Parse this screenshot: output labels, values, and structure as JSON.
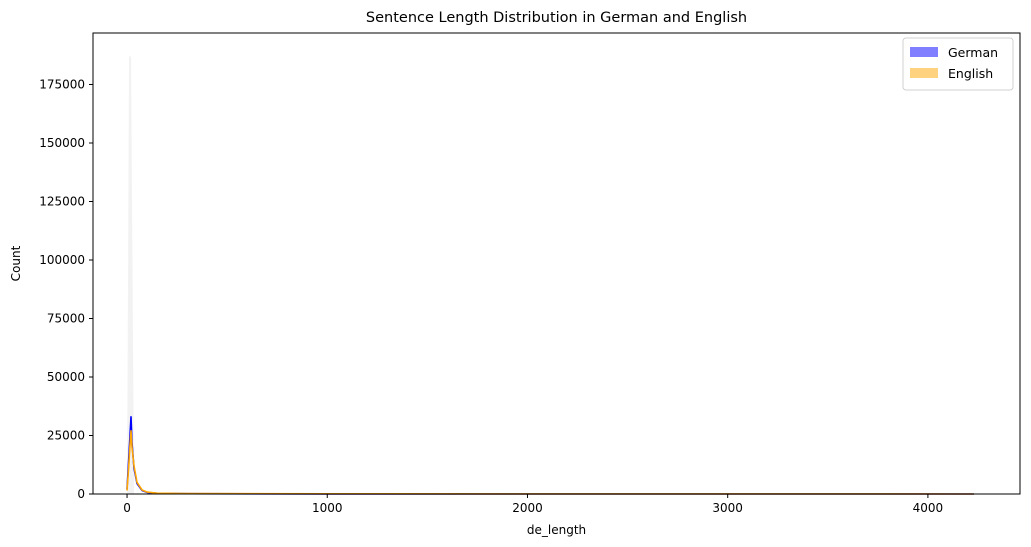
{
  "chart_data": {
    "type": "area",
    "title": "Sentence Length Distribution in German and English",
    "xlabel": "de_length",
    "ylabel": "Count",
    "xlim": [
      -170,
      4460
    ],
    "ylim": [
      0,
      197000
    ],
    "x_ticks": [
      0,
      1000,
      2000,
      3000,
      4000
    ],
    "x_tick_labels": [
      "0",
      "1000",
      "2000",
      "3000",
      "4000"
    ],
    "y_ticks": [
      0,
      25000,
      50000,
      75000,
      100000,
      125000,
      150000,
      175000
    ],
    "y_tick_labels": [
      "0",
      "25000",
      "50000",
      "75000",
      "100000",
      "125000",
      "150000",
      "175000"
    ],
    "grid": false,
    "legend_position": "top-right",
    "series": [
      {
        "name": "German",
        "color": "#0000ff",
        "x": [
          0,
          8,
          15,
          20,
          25,
          35,
          50,
          75,
          100,
          150,
          300,
          1000,
          2000,
          2950,
          4230
        ],
        "y": [
          2000,
          14000,
          25000,
          33000,
          22000,
          11000,
          4500,
          1500,
          700,
          300,
          120,
          60,
          40,
          30,
          10
        ]
      },
      {
        "name": "English",
        "color": "#ffa500",
        "x": [
          0,
          8,
          15,
          20,
          25,
          35,
          50,
          75,
          100,
          150,
          300,
          1000,
          2000,
          2950,
          4230
        ],
        "y": [
          1500,
          11000,
          21000,
          27000,
          20000,
          12000,
          5000,
          1700,
          800,
          350,
          150,
          80,
          60,
          40,
          15
        ]
      }
    ],
    "histogram_spike": {
      "x": 15,
      "max_count": 187000,
      "color": "#d9d9d9"
    }
  }
}
